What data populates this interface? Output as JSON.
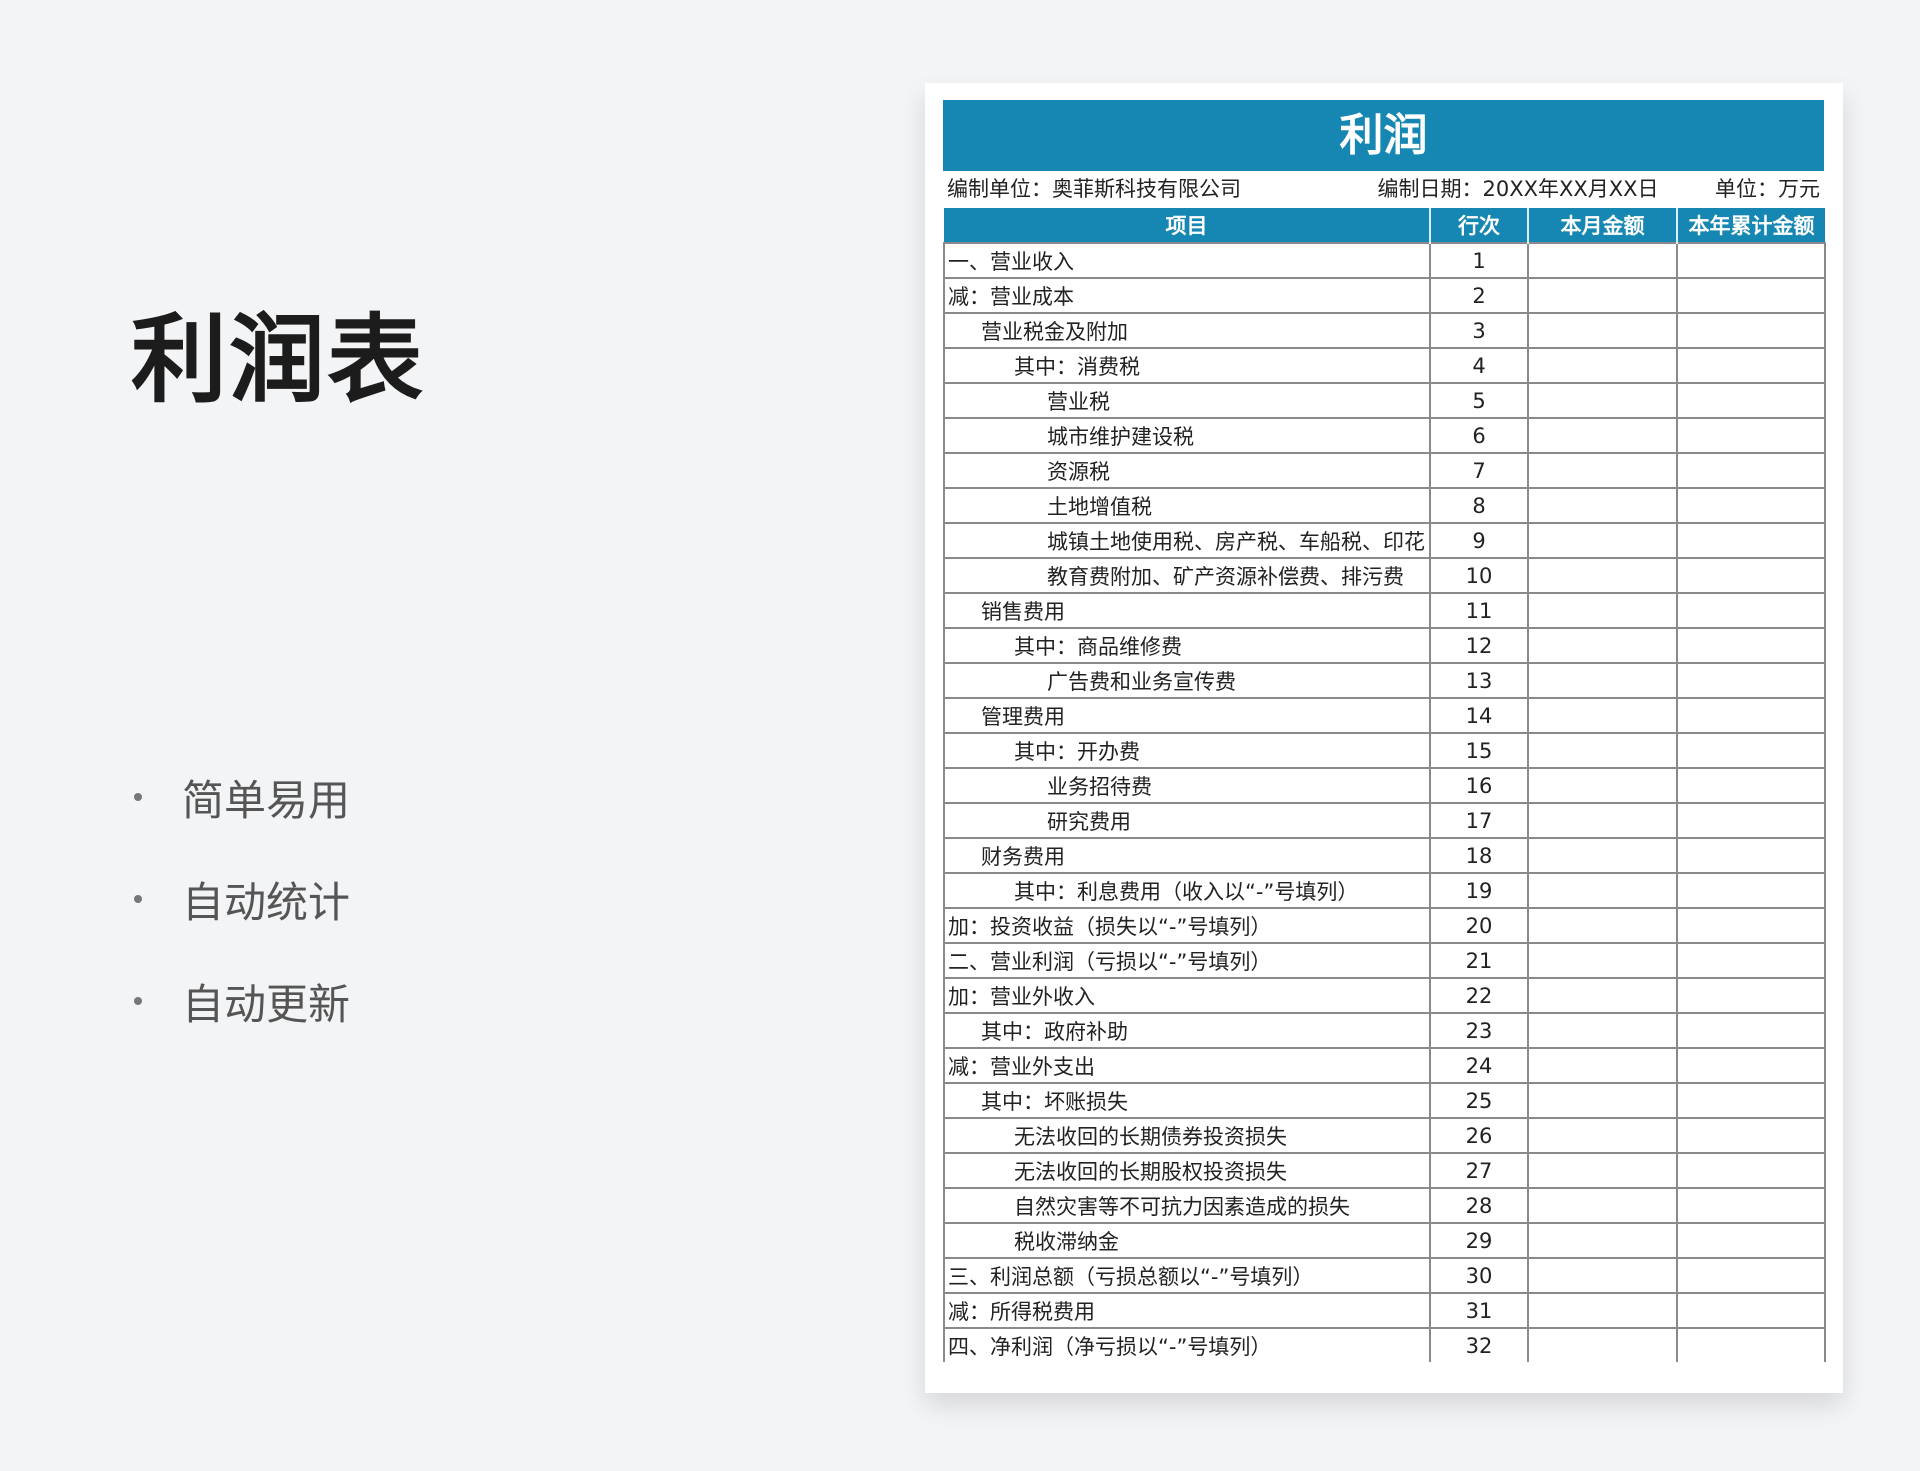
{
  "left": {
    "title": "利润表",
    "features": [
      "简单易用",
      "自动统计",
      "自动更新"
    ]
  },
  "sheet": {
    "banner": "利润",
    "unit_label": "编制单位：奥菲斯科技有限公司",
    "date_label": "编制日期：20XX年XX月XX日",
    "currency_label": "单位：万元",
    "columns": [
      "项目",
      "行次",
      "本月金额",
      "本年累计金额"
    ],
    "accent_color": "#1687b2",
    "rows": [
      {
        "item": "一、营业收入",
        "no": "1",
        "level": 0
      },
      {
        "item": "减：营业成本",
        "no": "2",
        "level": 0
      },
      {
        "item": "营业税金及附加",
        "no": "3",
        "level": 1
      },
      {
        "item": "其中：消费税",
        "no": "4",
        "level": 2
      },
      {
        "item": "营业税",
        "no": "5",
        "level": 3
      },
      {
        "item": "城市维护建设税",
        "no": "6",
        "level": 3
      },
      {
        "item": "资源税",
        "no": "7",
        "level": 3
      },
      {
        "item": "土地增值税",
        "no": "8",
        "level": 3
      },
      {
        "item": "城镇土地使用税、房产税、车船税、印花",
        "no": "9",
        "level": 3
      },
      {
        "item": "教育费附加、矿产资源补偿费、排污费",
        "no": "10",
        "level": 3
      },
      {
        "item": "销售费用",
        "no": "11",
        "level": 1
      },
      {
        "item": "其中：商品维修费",
        "no": "12",
        "level": 2
      },
      {
        "item": "广告费和业务宣传费",
        "no": "13",
        "level": 3
      },
      {
        "item": "管理费用",
        "no": "14",
        "level": 1
      },
      {
        "item": "其中：开办费",
        "no": "15",
        "level": 2
      },
      {
        "item": "业务招待费",
        "no": "16",
        "level": 3
      },
      {
        "item": "研究费用",
        "no": "17",
        "level": 3
      },
      {
        "item": "财务费用",
        "no": "18",
        "level": 1
      },
      {
        "item": "其中：利息费用（收入以“-”号填列）",
        "no": "19",
        "level": 2
      },
      {
        "item": "加：投资收益（损失以“-”号填列）",
        "no": "20",
        "level": 0
      },
      {
        "item": "二、营业利润（亏损以“-”号填列）",
        "no": "21",
        "level": 0
      },
      {
        "item": "加：营业外收入",
        "no": "22",
        "level": 0
      },
      {
        "item": "其中：政府补助",
        "no": "23",
        "level": 1
      },
      {
        "item": "减：营业外支出",
        "no": "24",
        "level": 0
      },
      {
        "item": "其中：坏账损失",
        "no": "25",
        "level": 1
      },
      {
        "item": "无法收回的长期债券投资损失",
        "no": "26",
        "level": 2
      },
      {
        "item": "无法收回的长期股权投资损失",
        "no": "27",
        "level": 2
      },
      {
        "item": "自然灾害等不可抗力因素造成的损失",
        "no": "28",
        "level": 2
      },
      {
        "item": "税收滞纳金",
        "no": "29",
        "level": 2
      },
      {
        "item": "三、利润总额（亏损总额以“-”号填列）",
        "no": "30",
        "level": 0
      },
      {
        "item": "减：所得税费用",
        "no": "31",
        "level": 0
      },
      {
        "item": "四、净利润（净亏损以“-”号填列）",
        "no": "32",
        "level": 0
      }
    ]
  }
}
